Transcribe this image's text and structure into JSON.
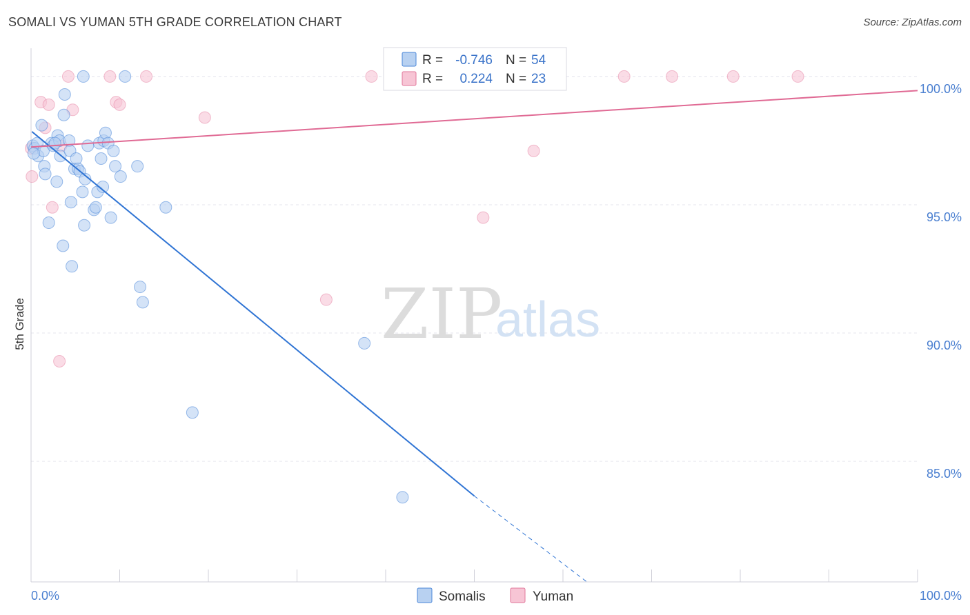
{
  "title": "SOMALI VS YUMAN 5TH GRADE CORRELATION CHART",
  "source": "Source: ZipAtlas.com",
  "watermark": {
    "zip": "ZIP",
    "atlas": "atlas"
  },
  "colors": {
    "somali": "#4a86d8",
    "somali_fill": "#b8d1f1",
    "yuman": "#e2769a",
    "yuman_fill": "#f7c5d5",
    "grid": "#e6e6ee",
    "tick_text": "#4a7fd0"
  },
  "chart_data": {
    "type": "scatter",
    "title": "SOMALI VS YUMAN 5TH GRADE CORRELATION CHART",
    "xlabel": "",
    "ylabel": "5th Grade",
    "xlim": [
      0,
      100
    ],
    "ylim": [
      80.3,
      101.1
    ],
    "x_tick_labels": [
      {
        "value": 0,
        "label": "0.0%"
      },
      {
        "value": 100,
        "label": "100.0%"
      }
    ],
    "y_ticks": [
      {
        "value": 85,
        "label": "85.0%"
      },
      {
        "value": 90,
        "label": "90.0%"
      },
      {
        "value": 95,
        "label": "95.0%"
      },
      {
        "value": 100,
        "label": "100.0%"
      }
    ],
    "legend": {
      "rows": [
        {
          "series": "Somalis",
          "r_label": "R =",
          "r_value": "-0.746",
          "n_label": "N =",
          "n_value": "54"
        },
        {
          "series": "Yuman",
          "r_label": "R =",
          "r_value": "0.224",
          "n_label": "N =",
          "n_value": "23"
        }
      ],
      "bottom": [
        "Somalis",
        "Yuman"
      ]
    },
    "series": [
      {
        "name": "Somalis",
        "trend": {
          "x0": 0.1,
          "y0": 97.85,
          "x1": 50.0,
          "y1": 83.65,
          "dash_x1": 62.7,
          "dash_y1": 80.3
        },
        "points": [
          [
            0.2,
            97.3
          ],
          [
            0.4,
            97.2
          ],
          [
            0.7,
            97.4
          ],
          [
            0.8,
            96.9
          ],
          [
            1.2,
            98.1
          ],
          [
            1.4,
            97.1
          ],
          [
            1.5,
            96.5
          ],
          [
            1.6,
            96.2
          ],
          [
            2.0,
            94.3
          ],
          [
            2.3,
            97.4
          ],
          [
            2.5,
            97.3
          ],
          [
            2.9,
            95.9
          ],
          [
            3.0,
            97.7
          ],
          [
            3.2,
            97.5
          ],
          [
            3.3,
            96.9
          ],
          [
            3.6,
            93.4
          ],
          [
            3.7,
            98.5
          ],
          [
            3.8,
            99.3
          ],
          [
            4.3,
            97.5
          ],
          [
            4.4,
            97.1
          ],
          [
            4.5,
            95.1
          ],
          [
            4.6,
            92.6
          ],
          [
            4.9,
            96.4
          ],
          [
            5.1,
            96.8
          ],
          [
            5.3,
            96.4
          ],
          [
            5.5,
            96.3
          ],
          [
            5.8,
            95.5
          ],
          [
            5.9,
            100.0
          ],
          [
            6.0,
            94.2
          ],
          [
            6.4,
            97.3
          ],
          [
            7.1,
            94.8
          ],
          [
            7.3,
            94.9
          ],
          [
            7.5,
            95.5
          ],
          [
            7.7,
            97.4
          ],
          [
            7.9,
            96.8
          ],
          [
            8.1,
            95.7
          ],
          [
            8.2,
            97.5
          ],
          [
            8.4,
            97.8
          ],
          [
            8.7,
            97.4
          ],
          [
            9.0,
            94.5
          ],
          [
            9.3,
            97.1
          ],
          [
            9.5,
            96.5
          ],
          [
            10.1,
            96.1
          ],
          [
            10.6,
            100.0
          ],
          [
            12.0,
            96.5
          ],
          [
            12.3,
            91.8
          ],
          [
            12.6,
            91.2
          ],
          [
            15.2,
            94.9
          ],
          [
            18.2,
            86.9
          ],
          [
            37.6,
            89.6
          ],
          [
            41.9,
            83.6
          ],
          [
            0.3,
            97.0
          ],
          [
            2.7,
            97.4
          ],
          [
            6.1,
            96.0
          ]
        ]
      },
      {
        "name": "Yuman",
        "trend": {
          "x0": 0.0,
          "y0": 97.25,
          "x1": 100.0,
          "y1": 99.45
        },
        "points": [
          [
            0.1,
            96.1
          ],
          [
            1.1,
            99.0
          ],
          [
            1.6,
            98.0
          ],
          [
            2.0,
            98.9
          ],
          [
            2.4,
            94.9
          ],
          [
            3.2,
            88.9
          ],
          [
            3.4,
            97.3
          ],
          [
            4.2,
            100.0
          ],
          [
            4.7,
            98.7
          ],
          [
            8.9,
            100.0
          ],
          [
            9.6,
            99.0
          ],
          [
            10.0,
            98.9
          ],
          [
            13.0,
            100.0
          ],
          [
            19.6,
            98.4
          ],
          [
            33.3,
            91.3
          ],
          [
            38.4,
            100.0
          ],
          [
            51.0,
            94.5
          ],
          [
            56.7,
            97.1
          ],
          [
            66.9,
            100.0
          ],
          [
            72.3,
            100.0
          ],
          [
            79.2,
            100.0
          ],
          [
            86.5,
            100.0
          ],
          [
            0.0,
            97.2
          ]
        ]
      }
    ]
  }
}
